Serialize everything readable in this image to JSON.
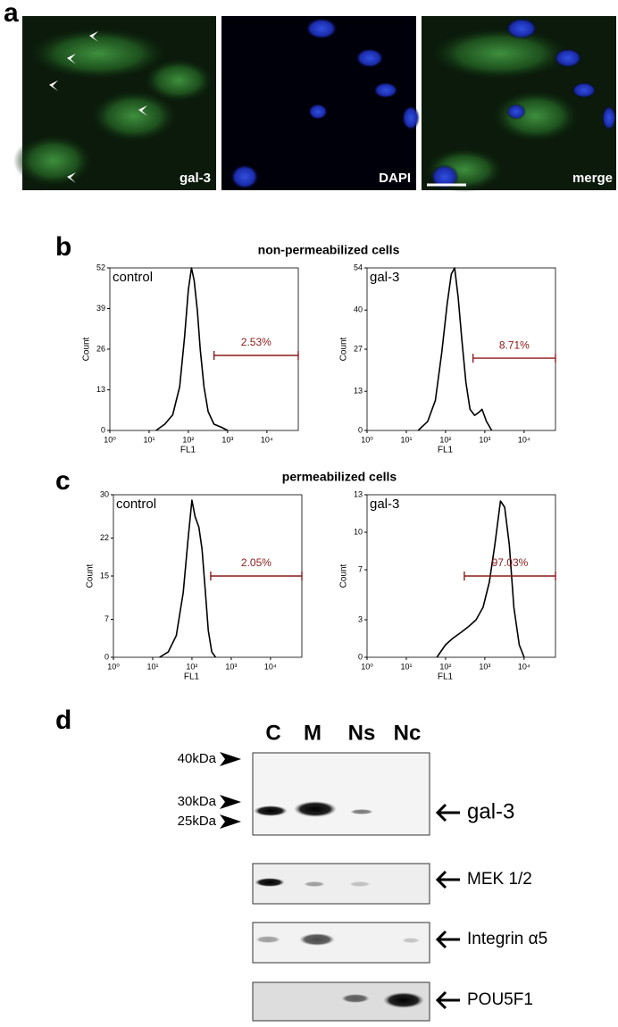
{
  "panel_a": {
    "label": "a",
    "images": [
      {
        "caption": "gal-3"
      },
      {
        "caption": "DAPI"
      },
      {
        "caption": "merge"
      }
    ]
  },
  "panel_b": {
    "label": "b",
    "title": "non-permeabilized cells"
  },
  "panel_c": {
    "label": "c",
    "title": "permeabilized cells"
  },
  "panel_d": {
    "label": "d",
    "lanes": [
      "C",
      "M",
      "Ns",
      "Nc"
    ],
    "markers": [
      "40kDa",
      "30kDa",
      "25kDa"
    ],
    "proteins": [
      "gal-3",
      "MEK 1/2",
      "Integrin α5",
      "POU5F1"
    ]
  },
  "chart_data": [
    {
      "type": "line",
      "label": "control",
      "xlabel": "FL1",
      "ylabel": "Count",
      "log_x": true,
      "color": "#000000",
      "x": [
        15,
        25,
        40,
        60,
        80,
        100,
        120,
        140,
        170,
        200,
        250,
        320,
        450,
        700,
        1000
      ],
      "values": [
        0,
        2,
        5,
        14,
        30,
        45,
        52,
        48,
        38,
        26,
        14,
        6,
        2,
        1,
        0
      ],
      "xlim": [
        1,
        63000
      ],
      "ylim": [
        0,
        52
      ],
      "xticks": [
        {
          "value": 1,
          "label": "10⁰"
        },
        {
          "value": 10,
          "label": "10¹"
        },
        {
          "value": 100,
          "label": "10²"
        },
        {
          "value": 1000,
          "label": "10³"
        },
        {
          "value": 10000,
          "label": "10⁴"
        }
      ],
      "yticks": [
        0,
        13,
        26,
        39,
        52
      ],
      "gate": {
        "label": "2.53%",
        "x": [
          450,
          63000
        ],
        "y": 24,
        "color": "#8b1a1a"
      }
    },
    {
      "type": "line",
      "label": "gal-3",
      "xlabel": "FL1",
      "ylabel": "Count",
      "log_x": true,
      "color": "#000000",
      "x": [
        20,
        35,
        55,
        80,
        110,
        140,
        170,
        210,
        260,
        330,
        420,
        550,
        700,
        850,
        1100,
        1500
      ],
      "values": [
        0,
        3,
        10,
        26,
        42,
        52,
        54,
        44,
        30,
        16,
        7,
        5,
        6,
        7,
        3,
        0
      ],
      "xlim": [
        1,
        63000
      ],
      "ylim": [
        0,
        54
      ],
      "xticks": [
        {
          "value": 1,
          "label": "10⁰"
        },
        {
          "value": 10,
          "label": "10¹"
        },
        {
          "value": 100,
          "label": "10²"
        },
        {
          "value": 1000,
          "label": "10³"
        },
        {
          "value": 10000,
          "label": "10⁴"
        }
      ],
      "yticks": [
        0,
        13,
        27,
        40,
        54
      ],
      "gate": {
        "label": "8.71%",
        "x": [
          500,
          63000
        ],
        "y": 24,
        "color": "#8b1a1a"
      }
    },
    {
      "type": "line",
      "label": "control",
      "xlabel": "FL1",
      "ylabel": "Count",
      "log_x": true,
      "color": "#000000",
      "x": [
        15,
        25,
        40,
        60,
        80,
        100,
        120,
        150,
        180,
        220,
        260,
        320,
        400
      ],
      "values": [
        0,
        1,
        4,
        12,
        22,
        29,
        26,
        24,
        20,
        12,
        5,
        1,
        0
      ],
      "xlim": [
        1,
        63000
      ],
      "ylim": [
        0,
        30
      ],
      "xticks": [
        {
          "value": 1,
          "label": "10⁰"
        },
        {
          "value": 10,
          "label": "10¹"
        },
        {
          "value": 100,
          "label": "10²"
        },
        {
          "value": 1000,
          "label": "10³"
        },
        {
          "value": 10000,
          "label": "10⁴"
        }
      ],
      "yticks": [
        0,
        7,
        15,
        22,
        30
      ],
      "gate": {
        "label": "2.05%",
        "x": [
          300,
          63000
        ],
        "y": 15,
        "color": "#8b1a1a"
      }
    },
    {
      "type": "line",
      "label": "gal-3",
      "xlabel": "FL1",
      "ylabel": "Count",
      "log_x": true,
      "color": "#000000",
      "x": [
        60,
        100,
        150,
        250,
        400,
        600,
        900,
        1300,
        1800,
        2500,
        3200,
        4200,
        5500,
        7500,
        10000
      ],
      "values": [
        0,
        1,
        1.5,
        2,
        2.5,
        3,
        4,
        6,
        9,
        12.5,
        12,
        9,
        4,
        1,
        0
      ],
      "xlim": [
        1,
        63000
      ],
      "ylim": [
        0,
        13
      ],
      "xticks": [
        {
          "value": 1,
          "label": "10⁰"
        },
        {
          "value": 10,
          "label": "10¹"
        },
        {
          "value": 100,
          "label": "10²"
        },
        {
          "value": 1000,
          "label": "10³"
        },
        {
          "value": 10000,
          "label": "10⁴"
        }
      ],
      "yticks": [
        0,
        3,
        7,
        10,
        13
      ],
      "gate": {
        "label": "97.03%",
        "x": [
          300,
          63000
        ],
        "y": 6.5,
        "color": "#8b1a1a"
      }
    }
  ]
}
